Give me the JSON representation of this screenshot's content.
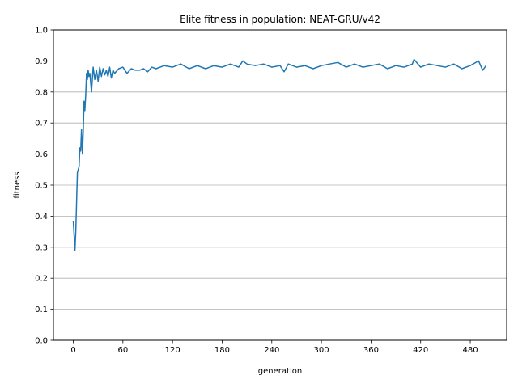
{
  "chart_data": {
    "type": "line",
    "title": "Elite fitness in population: NEAT-GRU/v42",
    "xlabel": "generation",
    "ylabel": "fitness",
    "xlim": [
      -24,
      524
    ],
    "ylim": [
      0.0,
      1.0
    ],
    "xticks": [
      0,
      60,
      120,
      180,
      240,
      300,
      360,
      420,
      480
    ],
    "yticks": [
      0.0,
      0.1,
      0.2,
      0.3,
      0.4,
      0.5,
      0.6,
      0.7,
      0.8,
      0.9,
      1.0
    ],
    "ytick_labels": [
      "0.0",
      "0.1",
      "0.2",
      "0.3",
      "0.4",
      "0.5",
      "0.6",
      "0.7",
      "0.8",
      "0.9",
      "1.0"
    ],
    "grid": "horizontal",
    "line_color": "#1f77b4",
    "series": [
      {
        "x": [
          0,
          2,
          3,
          5,
          7,
          8,
          9,
          10,
          11,
          12,
          13,
          14,
          15,
          16,
          17,
          18,
          19,
          20,
          22,
          24,
          26,
          28,
          30,
          32,
          34,
          36,
          38,
          40,
          42,
          44,
          46,
          48,
          50,
          55,
          60,
          65,
          70,
          75,
          80,
          85,
          90,
          95,
          100,
          110,
          120,
          130,
          140,
          150,
          160,
          170,
          180,
          190,
          200,
          205,
          210,
          220,
          230,
          240,
          250,
          255,
          260,
          270,
          280,
          290,
          300,
          310,
          320,
          330,
          340,
          350,
          360,
          370,
          380,
          390,
          400,
          410,
          412,
          420,
          430,
          440,
          450,
          460,
          470,
          480,
          490,
          495,
          499
        ],
        "y": [
          0.385,
          0.29,
          0.35,
          0.54,
          0.56,
          0.62,
          0.61,
          0.68,
          0.6,
          0.67,
          0.77,
          0.74,
          0.79,
          0.86,
          0.84,
          0.87,
          0.85,
          0.86,
          0.8,
          0.88,
          0.84,
          0.87,
          0.835,
          0.88,
          0.85,
          0.875,
          0.855,
          0.87,
          0.85,
          0.88,
          0.845,
          0.87,
          0.86,
          0.875,
          0.88,
          0.86,
          0.875,
          0.87,
          0.87,
          0.875,
          0.865,
          0.88,
          0.875,
          0.885,
          0.88,
          0.89,
          0.875,
          0.885,
          0.875,
          0.885,
          0.88,
          0.89,
          0.88,
          0.9,
          0.89,
          0.885,
          0.89,
          0.88,
          0.885,
          0.865,
          0.89,
          0.88,
          0.885,
          0.875,
          0.885,
          0.89,
          0.895,
          0.88,
          0.89,
          0.88,
          0.885,
          0.89,
          0.875,
          0.885,
          0.88,
          0.89,
          0.905,
          0.88,
          0.89,
          0.885,
          0.88,
          0.89,
          0.875,
          0.885,
          0.9,
          0.87,
          0.885
        ]
      }
    ]
  }
}
